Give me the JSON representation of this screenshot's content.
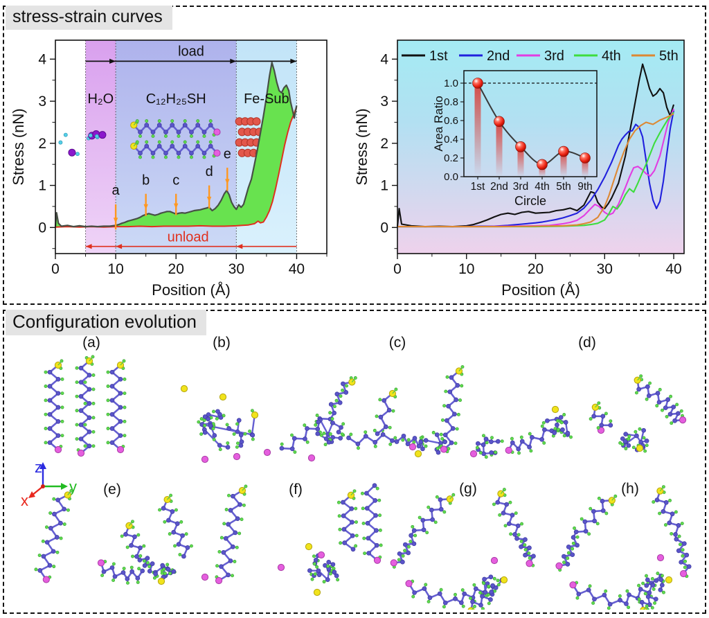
{
  "figure": {
    "section1_title": "stress-strain curves",
    "section2_title": "Configuration evolution"
  },
  "atom_colors": {
    "carbon": "#5a54c9",
    "hydrogen": "#5fdc4f",
    "sulfur": "#f1e31c",
    "head_group": "#e55ede",
    "water_oxygen": "#8b18cc",
    "water_hydrogen": "#55d0e8",
    "iron": "#e2574b"
  },
  "axis_indicator": {
    "x": {
      "label": "x",
      "color": "#e8281e"
    },
    "y": {
      "label": "y",
      "color": "#22bb22"
    },
    "z": {
      "label": "z",
      "color": "#2a2ae0"
    }
  },
  "config_labels": [
    "(a)",
    "(b)",
    "(c)",
    "(d)",
    "(e)",
    "(f)",
    "(g)",
    "(h)"
  ],
  "chart_data": [
    {
      "type": "area",
      "title": "load-unload stress curve",
      "xlabel": "Position (Å)",
      "ylabel": "Stress (nN)",
      "xlim": [
        0,
        45
      ],
      "ylim": [
        -0.62,
        4.45
      ],
      "xticks": [
        "0",
        "10",
        "20",
        "30",
        "40"
      ],
      "xtick_vals": [
        0,
        10,
        20,
        30,
        40
      ],
      "yticks": [
        "0",
        "1",
        "2",
        "3",
        "4"
      ],
      "ytick_vals": [
        0,
        1,
        2,
        3,
        4
      ],
      "grid": false,
      "dotted_lines": [
        5,
        10,
        30,
        40
      ],
      "regions": [
        {
          "label": "H₂O",
          "from": 5,
          "to": 10,
          "color_top": "#d9a0ee",
          "color_bottom": "#efd4f7"
        },
        {
          "label": "C₁₂H₂₅SH",
          "from": 10,
          "to": 30,
          "color_top": "#aeb2ec",
          "color_bottom": "#ccdaf6"
        },
        {
          "label": "Fe-Sub",
          "from": 30,
          "to": 40,
          "color_top": "#c2e4f8",
          "color_bottom": "#daf1fd"
        }
      ],
      "load_arrow": {
        "label": "load",
        "y": 3.95,
        "from": 5,
        "to": 40,
        "heads": [
          10,
          30,
          40
        ],
        "color": "#111111"
      },
      "unload_arrow": {
        "label": "unload",
        "y": -0.45,
        "from": 5,
        "to": 40,
        "heads": [
          5,
          10,
          30
        ],
        "color": "#e0301e"
      },
      "point_labels": [
        {
          "label": "a",
          "x": 10,
          "tip": 0.1,
          "tail": 0.55,
          "ty": 0.78
        },
        {
          "label": "b",
          "x": 15,
          "tip": 0.42,
          "tail": 0.8,
          "ty": 1.02
        },
        {
          "label": "c",
          "x": 20,
          "tip": 0.44,
          "tail": 0.8,
          "ty": 1.02
        },
        {
          "label": "d",
          "x": 25.5,
          "tip": 0.6,
          "tail": 1.0,
          "ty": 1.22
        },
        {
          "label": "e",
          "x": 28.5,
          "tip": 1.02,
          "tail": 1.42,
          "ty": 1.64
        }
      ],
      "fill_color": "#68e24f",
      "series": [
        {
          "name": "load",
          "color": "#474f45",
          "x": [
            0,
            0.2,
            0.5,
            1,
            2,
            3,
            4,
            5,
            6,
            7,
            8,
            9,
            10,
            10.5,
            11,
            11.5,
            12,
            12.5,
            13,
            13.5,
            14,
            14.5,
            15,
            15.5,
            16,
            16.5,
            17,
            17.5,
            18,
            18.5,
            19,
            19.5,
            20,
            20.5,
            21,
            21.5,
            22,
            22.5,
            23,
            23.5,
            24,
            24.5,
            25,
            25.5,
            26,
            26.5,
            27,
            27.5,
            28,
            28.4,
            28.8,
            29.2,
            29.6,
            30,
            30.4,
            30.8,
            31.2,
            31.6,
            32,
            32.5,
            33,
            33.5,
            34,
            34.5,
            35,
            35.5,
            35.9,
            36.3,
            36.7,
            37.1,
            37.5,
            37.9,
            38.3,
            38.7,
            39,
            39.3,
            39.6,
            40
          ],
          "y": [
            0.02,
            0.35,
            0.1,
            0.03,
            0.05,
            0.02,
            0.04,
            0.02,
            0.03,
            0.02,
            0.03,
            0.03,
            0.05,
            0.07,
            0.1,
            0.12,
            0.15,
            0.17,
            0.19,
            0.21,
            0.24,
            0.28,
            0.31,
            0.33,
            0.31,
            0.29,
            0.31,
            0.34,
            0.36,
            0.38,
            0.38,
            0.35,
            0.32,
            0.34,
            0.35,
            0.34,
            0.36,
            0.38,
            0.4,
            0.41,
            0.42,
            0.44,
            0.46,
            0.48,
            0.4,
            0.45,
            0.53,
            0.65,
            0.8,
            0.88,
            0.78,
            0.6,
            0.5,
            0.43,
            0.54,
            0.48,
            0.55,
            0.75,
            0.95,
            1.15,
            1.5,
            1.85,
            2.25,
            2.65,
            3.1,
            3.6,
            3.92,
            3.72,
            3.45,
            3.25,
            3.2,
            3.32,
            3.38,
            3.25,
            2.98,
            2.8,
            2.6,
            2.9
          ]
        },
        {
          "name": "unload",
          "color": "#e0301e",
          "x": [
            0,
            2,
            4,
            6,
            8,
            10,
            12,
            14,
            16,
            18,
            20,
            22,
            24,
            26,
            28,
            30,
            31,
            32,
            33,
            33.6,
            34,
            34.5,
            35,
            35.5,
            36,
            36.5,
            37,
            37.5,
            38,
            38.5,
            39,
            39.5,
            40
          ],
          "y": [
            0.01,
            0.02,
            0.01,
            0.02,
            0.01,
            0.02,
            0.02,
            0.03,
            0.02,
            0.03,
            0.03,
            0.03,
            0.04,
            0.03,
            0.03,
            0.04,
            0.05,
            0.06,
            0.09,
            0.15,
            0.11,
            0.13,
            0.25,
            0.4,
            0.62,
            0.92,
            1.25,
            1.6,
            1.95,
            2.25,
            2.5,
            2.68,
            2.87
          ]
        }
      ]
    },
    {
      "type": "line",
      "title": "stress curves for cycles",
      "xlabel": "Position (Å)",
      "ylabel": "Stress (nN)",
      "xlim": [
        0,
        41.5
      ],
      "ylim": [
        -0.62,
        4.45
      ],
      "xticks": [
        "0",
        "10",
        "20",
        "30",
        "40"
      ],
      "xtick_vals": [
        0,
        10,
        20,
        30,
        40
      ],
      "yticks": [
        "0",
        "1",
        "2",
        "3",
        "4"
      ],
      "ytick_vals": [
        0,
        1,
        2,
        3,
        4
      ],
      "grid": false,
      "bg_gradient": [
        "#a4ebf3",
        "#b2e0f2",
        "#eed2ec"
      ],
      "legend": [
        "1st",
        "2nd",
        "3rd",
        "4th",
        "5th"
      ],
      "legend_position": "top",
      "series": [
        {
          "name": "1st",
          "color": "#111111",
          "x": [
            0,
            0.25,
            0.6,
            2,
            4,
            6,
            8,
            10,
            11,
            12,
            13,
            14,
            15,
            16,
            17,
            18,
            19,
            20,
            21,
            22,
            23,
            24,
            25,
            26,
            27,
            28,
            28.5,
            29,
            29.6,
            30,
            30.5,
            31,
            32,
            33,
            34,
            35,
            35.5,
            36,
            36.5,
            37,
            37.5,
            38,
            38.5,
            39,
            39.5,
            40
          ],
          "y": [
            0.02,
            0.45,
            0.08,
            0.04,
            0.02,
            0.03,
            0.02,
            0.04,
            0.07,
            0.12,
            0.18,
            0.25,
            0.31,
            0.34,
            0.31,
            0.36,
            0.38,
            0.34,
            0.35,
            0.36,
            0.4,
            0.42,
            0.46,
            0.4,
            0.53,
            0.85,
            0.82,
            0.6,
            0.48,
            0.45,
            0.56,
            0.7,
            1.05,
            1.7,
            2.6,
            3.5,
            3.88,
            3.6,
            3.3,
            3.12,
            3.18,
            3.3,
            3.2,
            2.85,
            2.65,
            2.92
          ]
        },
        {
          "name": "2nd",
          "color": "#2020dd",
          "x": [
            0,
            3,
            6,
            9,
            12,
            14,
            16,
            18,
            20,
            21,
            22,
            23,
            24,
            25,
            26,
            27,
            28,
            29,
            30,
            31,
            32,
            32.5,
            33,
            33.5,
            34,
            34.5,
            35,
            35.5,
            36,
            36.5,
            37,
            37.5,
            38,
            38.5,
            39,
            39.5,
            40
          ],
          "y": [
            0.02,
            0.02,
            0.02,
            0.02,
            0.03,
            0.03,
            0.05,
            0.08,
            0.11,
            0.13,
            0.16,
            0.19,
            0.23,
            0.28,
            0.34,
            0.46,
            0.65,
            0.9,
            1.2,
            1.55,
            1.95,
            2.1,
            2.2,
            2.28,
            2.3,
            2.45,
            2.38,
            2.15,
            1.6,
            1.05,
            0.65,
            0.45,
            0.62,
            1.1,
            1.75,
            2.35,
            2.78
          ]
        },
        {
          "name": "3rd",
          "color": "#e23ce2",
          "x": [
            0,
            4,
            8,
            12,
            16,
            20,
            22,
            24,
            25,
            26,
            27,
            28,
            28.6,
            29.2,
            30,
            30.6,
            31.2,
            32,
            33,
            33.6,
            34.2,
            34.8,
            35.4,
            36,
            36.6,
            37.2,
            38,
            38.6,
            39.2,
            40
          ],
          "y": [
            0.02,
            0.02,
            0.02,
            0.02,
            0.03,
            0.04,
            0.05,
            0.09,
            0.12,
            0.17,
            0.28,
            0.45,
            0.55,
            0.5,
            0.36,
            0.3,
            0.34,
            0.55,
            0.95,
            1.2,
            1.42,
            1.45,
            1.38,
            1.28,
            1.22,
            1.35,
            1.7,
            2.1,
            2.5,
            2.82
          ]
        },
        {
          "name": "4th",
          "color": "#3ddd3d",
          "x": [
            0,
            5,
            10,
            15,
            20,
            24,
            27,
            28,
            29,
            30,
            30.6,
            31.2,
            31.8,
            32.4,
            33,
            33.6,
            34.2,
            34.8,
            35.4,
            36,
            36.6,
            37.2,
            38,
            38.6,
            39.2,
            40
          ],
          "y": [
            0.02,
            0.02,
            0.02,
            0.02,
            0.02,
            0.03,
            0.05,
            0.07,
            0.1,
            0.18,
            0.32,
            0.5,
            0.44,
            0.58,
            0.78,
            0.92,
            0.84,
            1.05,
            1.28,
            1.5,
            1.75,
            2.0,
            2.25,
            2.42,
            2.58,
            2.74
          ]
        },
        {
          "name": "5th",
          "color": "#dd8833",
          "x": [
            0,
            5,
            10,
            15,
            20,
            24,
            26,
            27,
            28,
            29,
            30,
            30.6,
            31.2,
            32,
            32.8,
            33.6,
            34.4,
            35.2,
            36,
            37,
            38,
            39,
            40
          ],
          "y": [
            0.02,
            0.02,
            0.02,
            0.02,
            0.03,
            0.04,
            0.06,
            0.09,
            0.13,
            0.24,
            0.5,
            0.75,
            1.05,
            1.45,
            1.8,
            2.1,
            2.3,
            2.42,
            2.5,
            2.45,
            2.55,
            2.62,
            2.7
          ]
        }
      ]
    },
    {
      "type": "scatter",
      "title": "area ratio inset",
      "xlabel": "Circle",
      "ylabel": "Area Ratio",
      "categories": [
        "1st",
        "2nd",
        "3rd",
        "4th",
        "5th",
        "9th"
      ],
      "values": [
        1.0,
        0.59,
        0.32,
        0.13,
        0.27,
        0.2
      ],
      "yticks": [
        "0.0",
        "0.2",
        "0.4",
        "0.6",
        "0.8",
        "1.0"
      ],
      "ytick_vals": [
        0.0,
        0.2,
        0.4,
        0.6,
        0.8,
        1.0
      ],
      "ylim": [
        0,
        1.15
      ],
      "ref_line": 1.0,
      "marker_color": "#e82010",
      "line_color": "#3a3a3a"
    }
  ]
}
